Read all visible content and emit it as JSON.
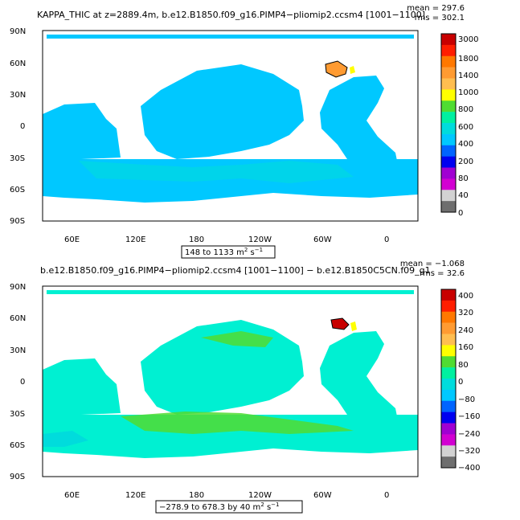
{
  "panels": [
    {
      "id": "top",
      "title": "KAPPA_THIC at z=2889.4m, b.e12.B1850.f09_g16.PIMP4−pliomip2.ccsm4 [1001−1100]",
      "stats": {
        "mean": "mean = 297.6",
        "rms": "rms = 302.1"
      },
      "range_label": {
        "prefix": "148 to 1133 m",
        "sup2": "2",
        "s": " s",
        "sup_neg1": "−1"
      },
      "colorbar_labels": [
        "3000",
        "1800",
        "1400",
        "1000",
        "800",
        "600",
        "400",
        "200",
        "80",
        "40",
        "0"
      ],
      "colorbar_colors": [
        "#c80000",
        "#ff1e00",
        "#ff7800",
        "#ff9b32",
        "#ffbe50",
        "#ffff00",
        "#50dc32",
        "#00f0a0",
        "#00dcdc",
        "#00c8ff",
        "#0064ff",
        "#0000f0",
        "#a000d2",
        "#d200d2",
        "#d2d2d2",
        "#6e6e6e"
      ]
    },
    {
      "id": "bottom",
      "title": "b.e12.B1850.f09_g16.PIMP4−pliomip2.ccsm4 [1001−1100] − b.e12.B1850C5CN.f09_g1",
      "stats": {
        "mean": "mean = −1.068",
        "rms": "rms = 32.6"
      },
      "range_label": {
        "prefix": "−278.9 to 678.3 by 40 m",
        "sup2": "2",
        "s": " s",
        "sup_neg1": "−1"
      },
      "colorbar_labels": [
        "400",
        "320",
        "240",
        "160",
        "80",
        "0",
        "−80",
        "−160",
        "−240",
        "−320",
        "−400"
      ],
      "colorbar_colors": [
        "#c80000",
        "#ff1e00",
        "#ff7800",
        "#ff9b32",
        "#ffbe50",
        "#ffff00",
        "#50dc32",
        "#00f0a0",
        "#00dcdc",
        "#00c8ff",
        "#0064ff",
        "#0000f0",
        "#a000d2",
        "#d200d2",
        "#d2d2d2",
        "#6e6e6e"
      ]
    }
  ],
  "axes": {
    "lat_labels": [
      "90N",
      "60N",
      "30N",
      "0",
      "30S",
      "60S",
      "90S"
    ],
    "lon_labels": [
      "60E",
      "120E",
      "180",
      "120W",
      "60W",
      "0"
    ]
  },
  "map_colors": {
    "ocean_top": "#00c8ff",
    "ocean_top_light": "#00dcdc",
    "ocean_bottom": "#00f0d2",
    "green": "#50dc32",
    "land": "#ffffff"
  }
}
